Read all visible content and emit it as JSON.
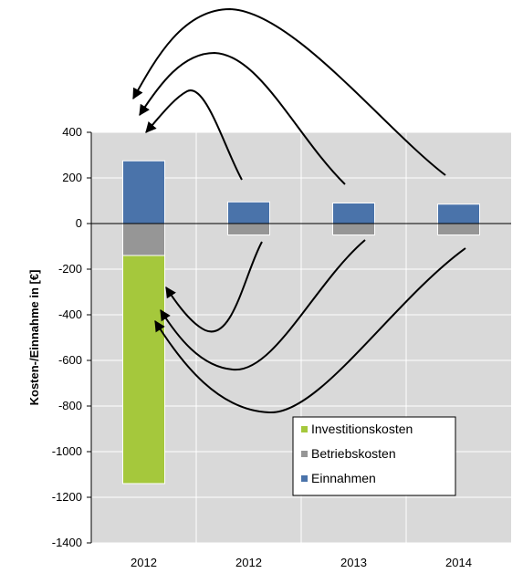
{
  "chart_data": {
    "type": "bar",
    "stacked": true,
    "categories": [
      "2012",
      "2012",
      "2013",
      "2014"
    ],
    "series": [
      {
        "name": "Investitionskosten",
        "color": "#a5c83c",
        "values": [
          -1000,
          0,
          0,
          0
        ]
      },
      {
        "name": "Betriebskosten",
        "color": "#969696",
        "values": [
          -140,
          -50,
          -50,
          -50
        ]
      },
      {
        "name": "Einnahmen",
        "color": "#4a73aa",
        "values": [
          275,
          95,
          90,
          85
        ]
      }
    ],
    "ylabel": "Kosten-/Einnahme in [€]",
    "ylim": [
      -1400,
      400
    ],
    "yticks": [
      400,
      200,
      0,
      -200,
      -400,
      -600,
      -800,
      -1000,
      -1200,
      -1400
    ],
    "plot_background": "#d9d9d9",
    "grid": true,
    "legend_position": "bottom-right",
    "annotations": "curved arrows carry the Einnahmen of 2012, 2013, 2014 and the Betriebskosten of 2012, 2013, 2014 back to the first 2012 column"
  }
}
